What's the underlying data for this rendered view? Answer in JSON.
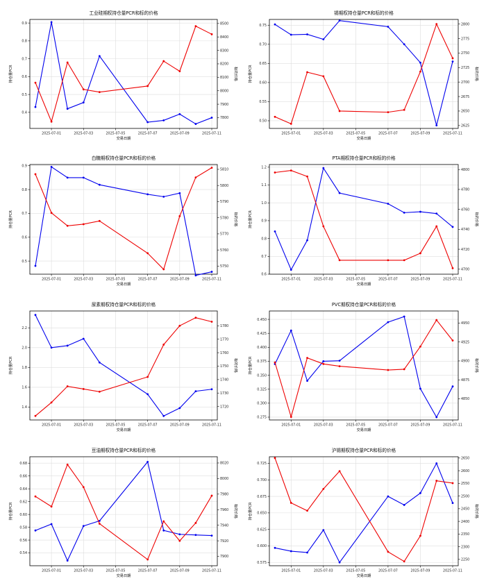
{
  "colors": {
    "pcr": "#0000ee",
    "price": "#ee0000",
    "grid": "#dddddd"
  },
  "chart_data": [
    {
      "type": "line",
      "title": "工业硅期权持仓量PCR和标的价格",
      "xlabel": "交易日期",
      "ylabel_left": "持仓量PCR",
      "ylabel_right": "标的价格",
      "x": [
        "2025-06-30",
        "2025-07-01",
        "2025-07-02",
        "2025-07-03",
        "2025-07-04",
        "2025-07-07",
        "2025-07-08",
        "2025-07-09",
        "2025-07-10",
        "2025-07-11"
      ],
      "x_ticks": [
        "2025-07-01",
        "2025-07-03",
        "2025-07-05",
        "2025-07-07",
        "2025-07-09",
        "2025-07-11"
      ],
      "ylim_left": [
        0.31,
        0.92
      ],
      "yticks_left": [
        "0.4",
        "0.5",
        "0.6",
        "0.7",
        "0.8",
        "0.9"
      ],
      "ylim_right": [
        7720,
        8530
      ],
      "yticks_right": [
        "7800",
        "7900",
        "8000",
        "8100",
        "8200",
        "8300",
        "8400",
        "8500"
      ],
      "series": [
        {
          "name": "持仓量PCR",
          "axis": "left",
          "values": [
            0.43,
            0.905,
            0.42,
            0.455,
            0.715,
            0.345,
            0.355,
            0.39,
            0.335,
            0.37
          ]
        },
        {
          "name": "标的价格",
          "axis": "right",
          "values": [
            8060,
            7770,
            8210,
            8010,
            7990,
            8035,
            8220,
            8145,
            8480,
            8420
          ]
        }
      ]
    },
    {
      "type": "line",
      "title": "锡期权持仓量PCR和标的价格",
      "xlabel": "交易日期",
      "ylabel_left": "持仓量PCR",
      "ylabel_right": "标的价格",
      "x": [
        "2025-06-30",
        "2025-07-01",
        "2025-07-02",
        "2025-07-03",
        "2025-07-04",
        "2025-07-07",
        "2025-07-08",
        "2025-07-09",
        "2025-07-10",
        "2025-07-11"
      ],
      "x_ticks": [
        "2025-07-01",
        "2025-07-03",
        "2025-07-05",
        "2025-07-07",
        "2025-07-09",
        "2025-07-11"
      ],
      "ylim_left": [
        0.48,
        0.765
      ],
      "yticks_left": [
        "0.50",
        "0.55",
        "0.60",
        "0.65",
        "0.70",
        "0.75"
      ],
      "ylim_right": [
        2620,
        2808
      ],
      "yticks_right": [
        "2625",
        "2650",
        "2675",
        "2700",
        "2725",
        "2750",
        "2775",
        "2800"
      ],
      "series": [
        {
          "name": "持仓量PCR",
          "axis": "left",
          "values": [
            0.752,
            0.725,
            0.726,
            0.713,
            0.762,
            0.746,
            0.7,
            0.652,
            0.488,
            0.655
          ]
        },
        {
          "name": "标的价格",
          "axis": "right",
          "values": [
            2640,
            2628,
            2717,
            2710,
            2650,
            2648,
            2652,
            2718,
            2800,
            2741
          ]
        }
      ]
    },
    {
      "type": "line",
      "title": "白糖期权持仓量PCR和标的价格",
      "xlabel": "交易日期",
      "ylabel_left": "持仓量PCR",
      "ylabel_right": "标的价格",
      "x": [
        "2025-06-30",
        "2025-07-01",
        "2025-07-02",
        "2025-07-03",
        "2025-07-04",
        "2025-07-07",
        "2025-07-08",
        "2025-07-09",
        "2025-07-10",
        "2025-07-11"
      ],
      "x_ticks": [
        "2025-07-01",
        "2025-07-03",
        "2025-07-05",
        "2025-07-07",
        "2025-07-09",
        "2025-07-11"
      ],
      "ylim_left": [
        0.445,
        0.905
      ],
      "yticks_left": [
        "0.5",
        "0.6",
        "0.7",
        "0.8",
        "0.9"
      ],
      "ylim_right": [
        5745,
        5813
      ],
      "yticks_right": [
        "5750",
        "5760",
        "5770",
        "5780",
        "5790",
        "5800",
        "5810"
      ],
      "series": [
        {
          "name": "持仓量PCR",
          "axis": "left",
          "values": [
            0.48,
            0.895,
            0.85,
            0.85,
            0.82,
            0.78,
            0.77,
            0.785,
            0.44,
            0.455
          ]
        },
        {
          "name": "标的价格",
          "axis": "right",
          "values": [
            5807,
            5783,
            5775,
            5776,
            5778,
            5758,
            5748,
            5781,
            5805,
            5811
          ]
        }
      ]
    },
    {
      "type": "line",
      "title": "PTA期权持仓量PCR和标的价格",
      "xlabel": "交易日期",
      "ylabel_left": "持仓量PCR",
      "ylabel_right": "标的价格",
      "x": [
        "2025-06-30",
        "2025-07-01",
        "2025-07-02",
        "2025-07-03",
        "2025-07-04",
        "2025-07-07",
        "2025-07-08",
        "2025-07-09",
        "2025-07-10",
        "2025-07-11"
      ],
      "x_ticks": [
        "2025-07-01",
        "2025-07-03",
        "2025-07-05",
        "2025-07-07",
        "2025-07-09",
        "2025-07-11"
      ],
      "ylim_left": [
        0.6,
        1.215
      ],
      "yticks_left": [
        "0.6",
        "0.7",
        "0.8",
        "0.9",
        "1.0",
        "1.1",
        "1.2"
      ],
      "ylim_right": [
        4695,
        4805
      ],
      "yticks_right": [
        "4700",
        "4720",
        "4740",
        "4760",
        "4780",
        "4800"
      ],
      "series": [
        {
          "name": "持仓量PCR",
          "axis": "left",
          "values": [
            0.84,
            0.625,
            0.79,
            1.195,
            1.055,
            0.995,
            0.945,
            0.95,
            0.94,
            0.865
          ]
        },
        {
          "name": "标的价格",
          "axis": "right",
          "values": [
            4797,
            4799,
            4793,
            4743,
            4709,
            4709,
            4709,
            4716,
            4743,
            4701
          ]
        }
      ]
    },
    {
      "type": "line",
      "title": "尿素期权持仓量PCR和标的价格",
      "xlabel": "交易日期",
      "ylabel_left": "持仓量PCR",
      "ylabel_right": "标的价格",
      "x": [
        "2025-06-30",
        "2025-07-01",
        "2025-07-02",
        "2025-07-03",
        "2025-07-04",
        "2025-07-07",
        "2025-07-08",
        "2025-07-09",
        "2025-07-10",
        "2025-07-11"
      ],
      "x_ticks": [
        "2025-07-01",
        "2025-07-03",
        "2025-07-05",
        "2025-07-07",
        "2025-07-09",
        "2025-07-11"
      ],
      "ylim_left": [
        1.27,
        2.37
      ],
      "yticks_left": [
        "1.4",
        "1.6",
        "1.8",
        "2.0",
        "2.2"
      ],
      "ylim_right": [
        1710,
        1791
      ],
      "yticks_right": [
        "1720",
        "1730",
        "1740",
        "1750",
        "1760",
        "1770",
        "1780"
      ],
      "series": [
        {
          "name": "持仓量PCR",
          "axis": "left",
          "values": [
            2.33,
            2.0,
            2.02,
            2.09,
            1.85,
            1.53,
            1.31,
            1.39,
            1.56,
            1.58
          ]
        },
        {
          "name": "标的价格",
          "axis": "right",
          "values": [
            1713,
            1723,
            1735,
            1733,
            1731,
            1742,
            1766,
            1780,
            1786,
            1783
          ]
        }
      ]
    },
    {
      "type": "line",
      "title": "PVC期权持仓量PCR和标的价格",
      "xlabel": "交易日期",
      "ylabel_left": "持仓量PCR",
      "ylabel_right": "标的价格",
      "x": [
        "2025-06-30",
        "2025-07-01",
        "2025-07-02",
        "2025-07-03",
        "2025-07-04",
        "2025-07-07",
        "2025-07-08",
        "2025-07-09",
        "2025-07-10",
        "2025-07-11"
      ],
      "x_ticks": [
        "2025-07-01",
        "2025-07-03",
        "2025-07-05",
        "2025-07-07",
        "2025-07-09",
        "2025-07-11"
      ],
      "ylim_left": [
        0.27,
        0.465
      ],
      "yticks_left": [
        "0.275",
        "0.300",
        "0.325",
        "0.350",
        "0.375",
        "0.400",
        "0.425",
        "0.450"
      ],
      "ylim_right": [
        4822,
        4966
      ],
      "yticks_right": [
        "4850",
        "4875",
        "4900",
        "4925",
        "4950"
      ],
      "series": [
        {
          "name": "持仓量PCR",
          "axis": "left",
          "values": [
            0.37,
            0.43,
            0.34,
            0.375,
            0.376,
            0.445,
            0.455,
            0.326,
            0.275,
            0.33
          ]
        },
        {
          "name": "标的价格",
          "axis": "right",
          "values": [
            4898,
            4826,
            4904,
            4896,
            4893,
            4888,
            4889,
            4919,
            4954,
            4927
          ]
        }
      ]
    },
    {
      "type": "line",
      "title": "豆油期权持仓量PCR和标的价格",
      "xlabel": "交易日期",
      "ylabel_left": "持仓量PCR",
      "ylabel_right": "标的价格",
      "x": [
        "2025-06-30",
        "2025-07-01",
        "2025-07-02",
        "2025-07-03",
        "2025-07-04",
        "2025-07-07",
        "2025-07-08",
        "2025-07-09",
        "2025-07-10",
        "2025-07-11"
      ],
      "x_ticks": [
        "2025-07-01",
        "2025-07-03",
        "2025-07-05",
        "2025-07-07",
        "2025-07-09",
        "2025-07-11"
      ],
      "ylim_left": [
        0.52,
        0.69
      ],
      "yticks_left": [
        "0.54",
        "0.56",
        "0.58",
        "0.60",
        "0.62",
        "0.64",
        "0.66",
        "0.68"
      ],
      "ylim_right": [
        7888,
        8028
      ],
      "yticks_right": [
        "7900",
        "7920",
        "7940",
        "7960",
        "7980",
        "8000",
        "8020"
      ],
      "series": [
        {
          "name": "持仓量PCR",
          "axis": "left",
          "values": [
            0.575,
            0.585,
            0.528,
            0.582,
            0.59,
            0.682,
            0.575,
            0.569,
            0.568,
            0.567
          ]
        },
        {
          "name": "标的价格",
          "axis": "right",
          "values": [
            7977,
            7964,
            8018,
            7989,
            7942,
            7896,
            7945,
            7920,
            7943,
            7978
          ]
        }
      ]
    },
    {
      "type": "line",
      "title": "沪锡期权持仓量PCR和标的价格",
      "xlabel": "交易日期",
      "ylabel_left": "持仓量PCR",
      "ylabel_right": "标的价格",
      "x": [
        "2025-06-30",
        "2025-07-01",
        "2025-07-02",
        "2025-07-03",
        "2025-07-04",
        "2025-07-07",
        "2025-07-08",
        "2025-07-09",
        "2025-07-10",
        "2025-07-11"
      ],
      "x_ticks": [
        "2025-07-01",
        "2025-07-03",
        "2025-07-05",
        "2025-07-07",
        "2025-07-09",
        "2025-07-11"
      ],
      "ylim_left": [
        0.57,
        0.735
      ],
      "yticks_left": [
        "0.575",
        "0.600",
        "0.625",
        "0.650",
        "0.675",
        "0.700",
        "0.725"
      ],
      "ylim_right": [
        2225,
        2655
      ],
      "yticks_right": [
        "2250",
        "2300",
        "2350",
        "2400",
        "2450",
        "2500",
        "2550",
        "2600",
        "2650"
      ],
      "series": [
        {
          "name": "持仓量PCR",
          "axis": "left",
          "values": [
            0.597,
            0.592,
            0.59,
            0.624,
            0.575,
            0.675,
            0.662,
            0.68,
            0.725,
            0.665
          ]
        },
        {
          "name": "标的价格",
          "axis": "right",
          "values": [
            2650,
            2473,
            2442,
            2528,
            2598,
            2280,
            2242,
            2343,
            2560,
            2551
          ]
        }
      ]
    }
  ]
}
